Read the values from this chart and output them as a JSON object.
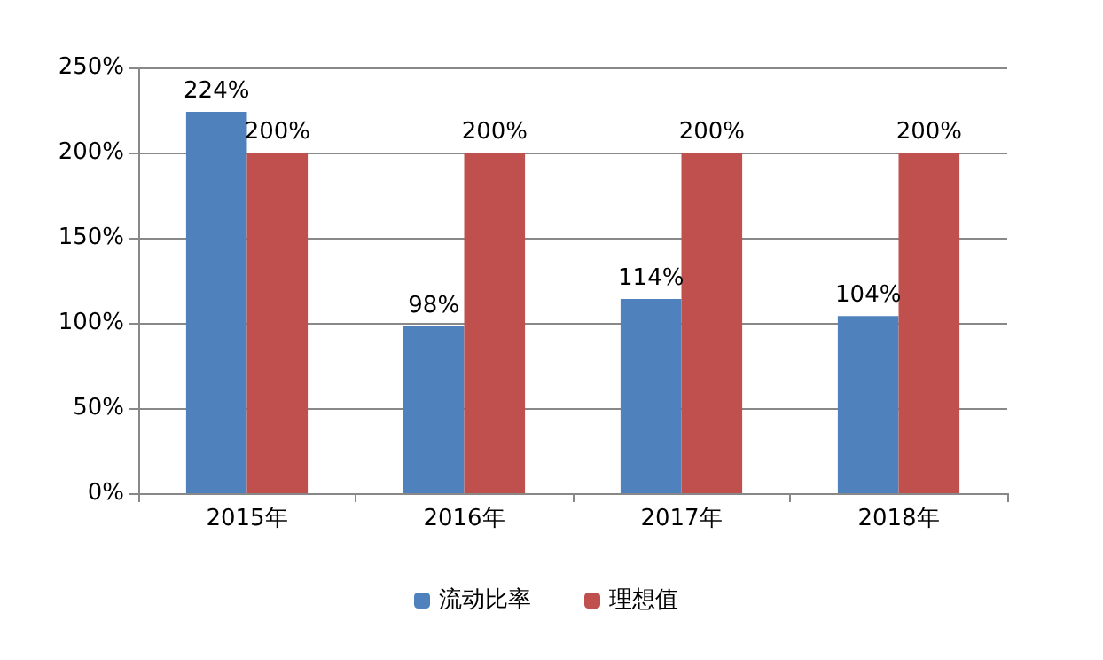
{
  "chart_data": {
    "type": "bar",
    "categories": [
      "2015年",
      "2016年",
      "2017年",
      "2018年"
    ],
    "series": [
      {
        "name": "流动比率",
        "color": "#4f81bd",
        "values": [
          224,
          98,
          114,
          104
        ],
        "value_labels": [
          "224%",
          "98%",
          "114%",
          "104%"
        ]
      },
      {
        "name": "理想值",
        "color": "#c0504d",
        "values": [
          200,
          200,
          200,
          200
        ],
        "value_labels": [
          "200%",
          "200%",
          "200%",
          "200%"
        ]
      }
    ],
    "ylim": [
      0,
      250
    ],
    "yticks": [
      {
        "value": 0,
        "label": "0%"
      },
      {
        "value": 50,
        "label": "50%"
      },
      {
        "value": 100,
        "label": "100%"
      },
      {
        "value": 150,
        "label": "150%"
      },
      {
        "value": 200,
        "label": "200%"
      },
      {
        "value": 250,
        "label": "250%"
      }
    ],
    "grid": "y",
    "legend": "bottom"
  }
}
